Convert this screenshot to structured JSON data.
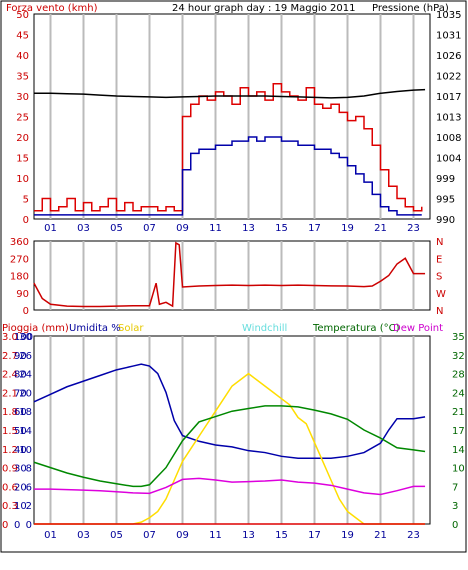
{
  "chart_data": [
    {
      "type": "line",
      "title": "24 hour graph day : 19 Maggio 2011",
      "left_axis_label": "Forza vento (kmh)",
      "right_axis_label": "Pressione (hPa)",
      "ylim": [
        0,
        50
      ],
      "y_ticks": [
        "0",
        "5",
        "10",
        "15",
        "20",
        "25",
        "30",
        "35",
        "40",
        "45",
        "50"
      ],
      "y2lim": [
        990,
        1035
      ],
      "y2_ticks": [
        "990",
        "995",
        "999",
        "1004",
        "1008",
        "1013",
        "1017",
        "1022",
        "1026",
        "1031",
        "1035"
      ],
      "x_ticks": [
        "01",
        "03",
        "05",
        "07",
        "09",
        "11",
        "13",
        "15",
        "17",
        "19",
        "21",
        "23"
      ],
      "series": [
        {
          "name": "Forza vento (kmh)",
          "color": "#dd0000",
          "axis": "left",
          "x": [
            0,
            0.5,
            1,
            1.5,
            2,
            2.5,
            3,
            3.5,
            4,
            4.5,
            5,
            5.5,
            6,
            6.5,
            7,
            7.5,
            8,
            8.5,
            9,
            9.5,
            10,
            10.5,
            11,
            11.5,
            12,
            12.5,
            13,
            13.5,
            14,
            14.5,
            15,
            15.5,
            16,
            16.5,
            17,
            17.5,
            18,
            18.5,
            19,
            19.5,
            20,
            20.5,
            21,
            21.5,
            22,
            22.5,
            23,
            23.5
          ],
          "values": [
            2,
            5,
            2,
            3,
            5,
            2,
            4,
            2,
            3,
            5,
            2,
            4,
            2,
            3,
            3,
            2,
            3,
            2,
            25,
            28,
            30,
            29,
            31,
            30,
            28,
            32,
            30,
            31,
            29,
            33,
            31,
            30,
            29,
            32,
            28,
            27,
            28,
            26,
            24,
            25,
            22,
            18,
            12,
            8,
            5,
            3,
            2,
            3
          ]
        },
        {
          "name": "Raffica",
          "color": "#0000aa",
          "axis": "left",
          "x": [
            0,
            0.5,
            1,
            1.5,
            2,
            2.5,
            3,
            3.5,
            4,
            4.5,
            5,
            5.5,
            6,
            6.5,
            7,
            7.5,
            8,
            8.5,
            9,
            9.5,
            10,
            10.5,
            11,
            11.5,
            12,
            12.5,
            13,
            13.5,
            14,
            14.5,
            15,
            15.5,
            16,
            16.5,
            17,
            17.5,
            18,
            18.5,
            19,
            19.5,
            20,
            20.5,
            21,
            21.5,
            22,
            22.5,
            23,
            23.5
          ],
          "values": [
            1,
            1,
            1,
            1,
            1,
            1,
            1,
            1,
            1,
            1,
            1,
            1,
            1,
            1,
            1,
            1,
            1,
            1,
            12,
            16,
            17,
            17,
            18,
            18,
            19,
            19,
            20,
            19,
            20,
            20,
            19,
            19,
            18,
            18,
            17,
            17,
            16,
            15,
            13,
            11,
            9,
            6,
            3,
            2,
            1,
            1,
            1,
            1
          ]
        },
        {
          "name": "Pressione (hPa)",
          "color": "#000000",
          "axis": "right",
          "x": [
            0,
            1,
            2,
            3,
            4,
            5,
            6,
            7,
            8,
            9,
            10,
            11,
            12,
            13,
            14,
            15,
            16,
            17,
            18,
            19,
            20,
            21,
            22,
            23,
            23.7
          ],
          "values": [
            1017.6,
            1017.6,
            1017.5,
            1017.4,
            1017.2,
            1017.0,
            1016.9,
            1016.8,
            1016.7,
            1016.8,
            1016.9,
            1017.0,
            1017.0,
            1017.0,
            1017.0,
            1016.9,
            1016.8,
            1016.7,
            1016.6,
            1016.7,
            1017.0,
            1017.6,
            1018.0,
            1018.3,
            1018.4
          ]
        }
      ]
    },
    {
      "type": "line",
      "ylim": [
        0,
        360
      ],
      "y_ticks": [
        "0",
        "90",
        "180",
        "270",
        "360"
      ],
      "compass": [
        "N",
        "W",
        "S",
        "E",
        "N"
      ],
      "x_ticks": [
        "01",
        "03",
        "05",
        "07",
        "09",
        "11",
        "13",
        "15",
        "17",
        "19",
        "21",
        "23"
      ],
      "series": [
        {
          "name": "Direzione vento",
          "color": "#cc0000",
          "x": [
            0,
            0.5,
            1,
            2,
            3,
            4,
            5,
            6,
            7,
            7.4,
            7.6,
            8,
            8.4,
            8.6,
            8.8,
            9,
            10,
            11,
            12,
            13,
            14,
            15,
            16,
            17,
            18,
            19,
            20,
            20.5,
            21,
            21.5,
            22,
            22.5,
            23,
            23.7
          ],
          "values": [
            140,
            60,
            30,
            20,
            18,
            18,
            20,
            22,
            22,
            140,
            30,
            40,
            20,
            350,
            340,
            120,
            125,
            128,
            130,
            128,
            130,
            128,
            130,
            128,
            126,
            125,
            122,
            125,
            150,
            180,
            240,
            270,
            190,
            190
          ]
        }
      ]
    },
    {
      "type": "line",
      "labels": [
        "Pioggia (mm)",
        "Umidita %",
        "Solar",
        "Windchill",
        "Temperatura (°C)",
        "Dew Point"
      ],
      "y_axis_rain": [
        "0",
        "0.3",
        "0.6",
        "0.9",
        "1.2",
        "1.5",
        "1.8",
        "2.1",
        "2.4",
        "2.7",
        "3.0"
      ],
      "y_axis_hum": [
        "0",
        "10",
        "20",
        "30",
        "40",
        "50",
        "60",
        "70",
        "80",
        "90",
        "100"
      ],
      "y_axis_solar": [
        "0",
        "2",
        "6",
        "8",
        "10",
        "14",
        "18",
        "20",
        "24",
        "26",
        "30"
      ],
      "y_axis_temp": [
        "0",
        "3",
        "7",
        "10",
        "14",
        "17",
        "21",
        "24",
        "28",
        "32",
        "35"
      ],
      "x_ticks": [
        "01",
        "03",
        "05",
        "07",
        "09",
        "11",
        "13",
        "15",
        "17",
        "19",
        "21",
        "23"
      ],
      "series": [
        {
          "name": "Umidita %",
          "color": "#0000aa",
          "axis": "humidity",
          "x": [
            0,
            1,
            2,
            3,
            4,
            5,
            6,
            6.5,
            7,
            7.5,
            8,
            8.5,
            9,
            10,
            11,
            12,
            13,
            14,
            15,
            16,
            17,
            18,
            19,
            20,
            21,
            21.5,
            22,
            23,
            23.7
          ],
          "values": [
            65,
            69,
            73,
            76,
            79,
            82,
            84,
            85,
            84,
            80,
            70,
            55,
            47,
            44,
            42,
            41,
            39,
            38,
            36,
            35,
            35,
            35,
            36,
            38,
            43,
            50,
            56,
            56,
            57
          ]
        },
        {
          "name": "Solar",
          "color": "#ffdd00",
          "axis": "solar",
          "x": [
            0,
            5,
            6,
            6.5,
            7,
            7.5,
            8,
            8.5,
            9,
            9.5,
            10,
            10.5,
            11,
            11.5,
            12,
            12.5,
            13,
            13.5,
            14,
            14.5,
            15,
            15.5,
            16,
            16.5,
            17,
            17.5,
            18,
            18.5,
            19,
            19.5,
            20,
            23.7
          ],
          "values": [
            0,
            0,
            0,
            0.3,
            1,
            2,
            4,
            7,
            10,
            12,
            14,
            16,
            18,
            20,
            22,
            23,
            24,
            23,
            22,
            21,
            20,
            19,
            17,
            16,
            13,
            10,
            7,
            4,
            2,
            1,
            0,
            0
          ]
        },
        {
          "name": "Temperatura (°C)",
          "color": "#008800",
          "axis": "temp",
          "x": [
            0,
            1,
            2,
            3,
            4,
            5,
            6,
            6.5,
            7,
            8,
            9,
            10,
            11,
            12,
            13,
            14,
            15,
            16,
            17,
            18,
            19,
            20,
            21,
            22,
            23,
            23.7
          ],
          "values": [
            11.5,
            10.5,
            9.5,
            8.7,
            8.0,
            7.5,
            7.0,
            7.0,
            7.3,
            10.5,
            15.5,
            19.0,
            20.0,
            21.0,
            21.5,
            22.0,
            22.0,
            21.8,
            21.2,
            20.5,
            19.5,
            17.5,
            16.0,
            14.2,
            13.8,
            13.5
          ]
        },
        {
          "name": "Dew Point",
          "color": "#dd00dd",
          "axis": "temp",
          "x": [
            0,
            1,
            2,
            3,
            4,
            5,
            6,
            7,
            8,
            9,
            10,
            11,
            12,
            13,
            14,
            15,
            16,
            17,
            18,
            19,
            20,
            21,
            22,
            23,
            23.7
          ],
          "values": [
            6.5,
            6.5,
            6.4,
            6.3,
            6.2,
            6.0,
            5.8,
            5.7,
            6.8,
            8.3,
            8.5,
            8.2,
            7.8,
            7.9,
            8.0,
            8.2,
            7.8,
            7.6,
            7.2,
            6.5,
            5.8,
            5.5,
            6.2,
            7.0,
            7.0
          ]
        },
        {
          "name": "Pioggia (mm)",
          "color": "#dd0000",
          "axis": "rain",
          "x": [
            0,
            23.7
          ],
          "values": [
            0,
            0
          ]
        }
      ]
    }
  ],
  "colors": {
    "grid": "#bbbbbb",
    "axis_red": "#cc0000",
    "axis_blue": "#000099",
    "axis_green": "#006600",
    "frame": "#000000"
  }
}
